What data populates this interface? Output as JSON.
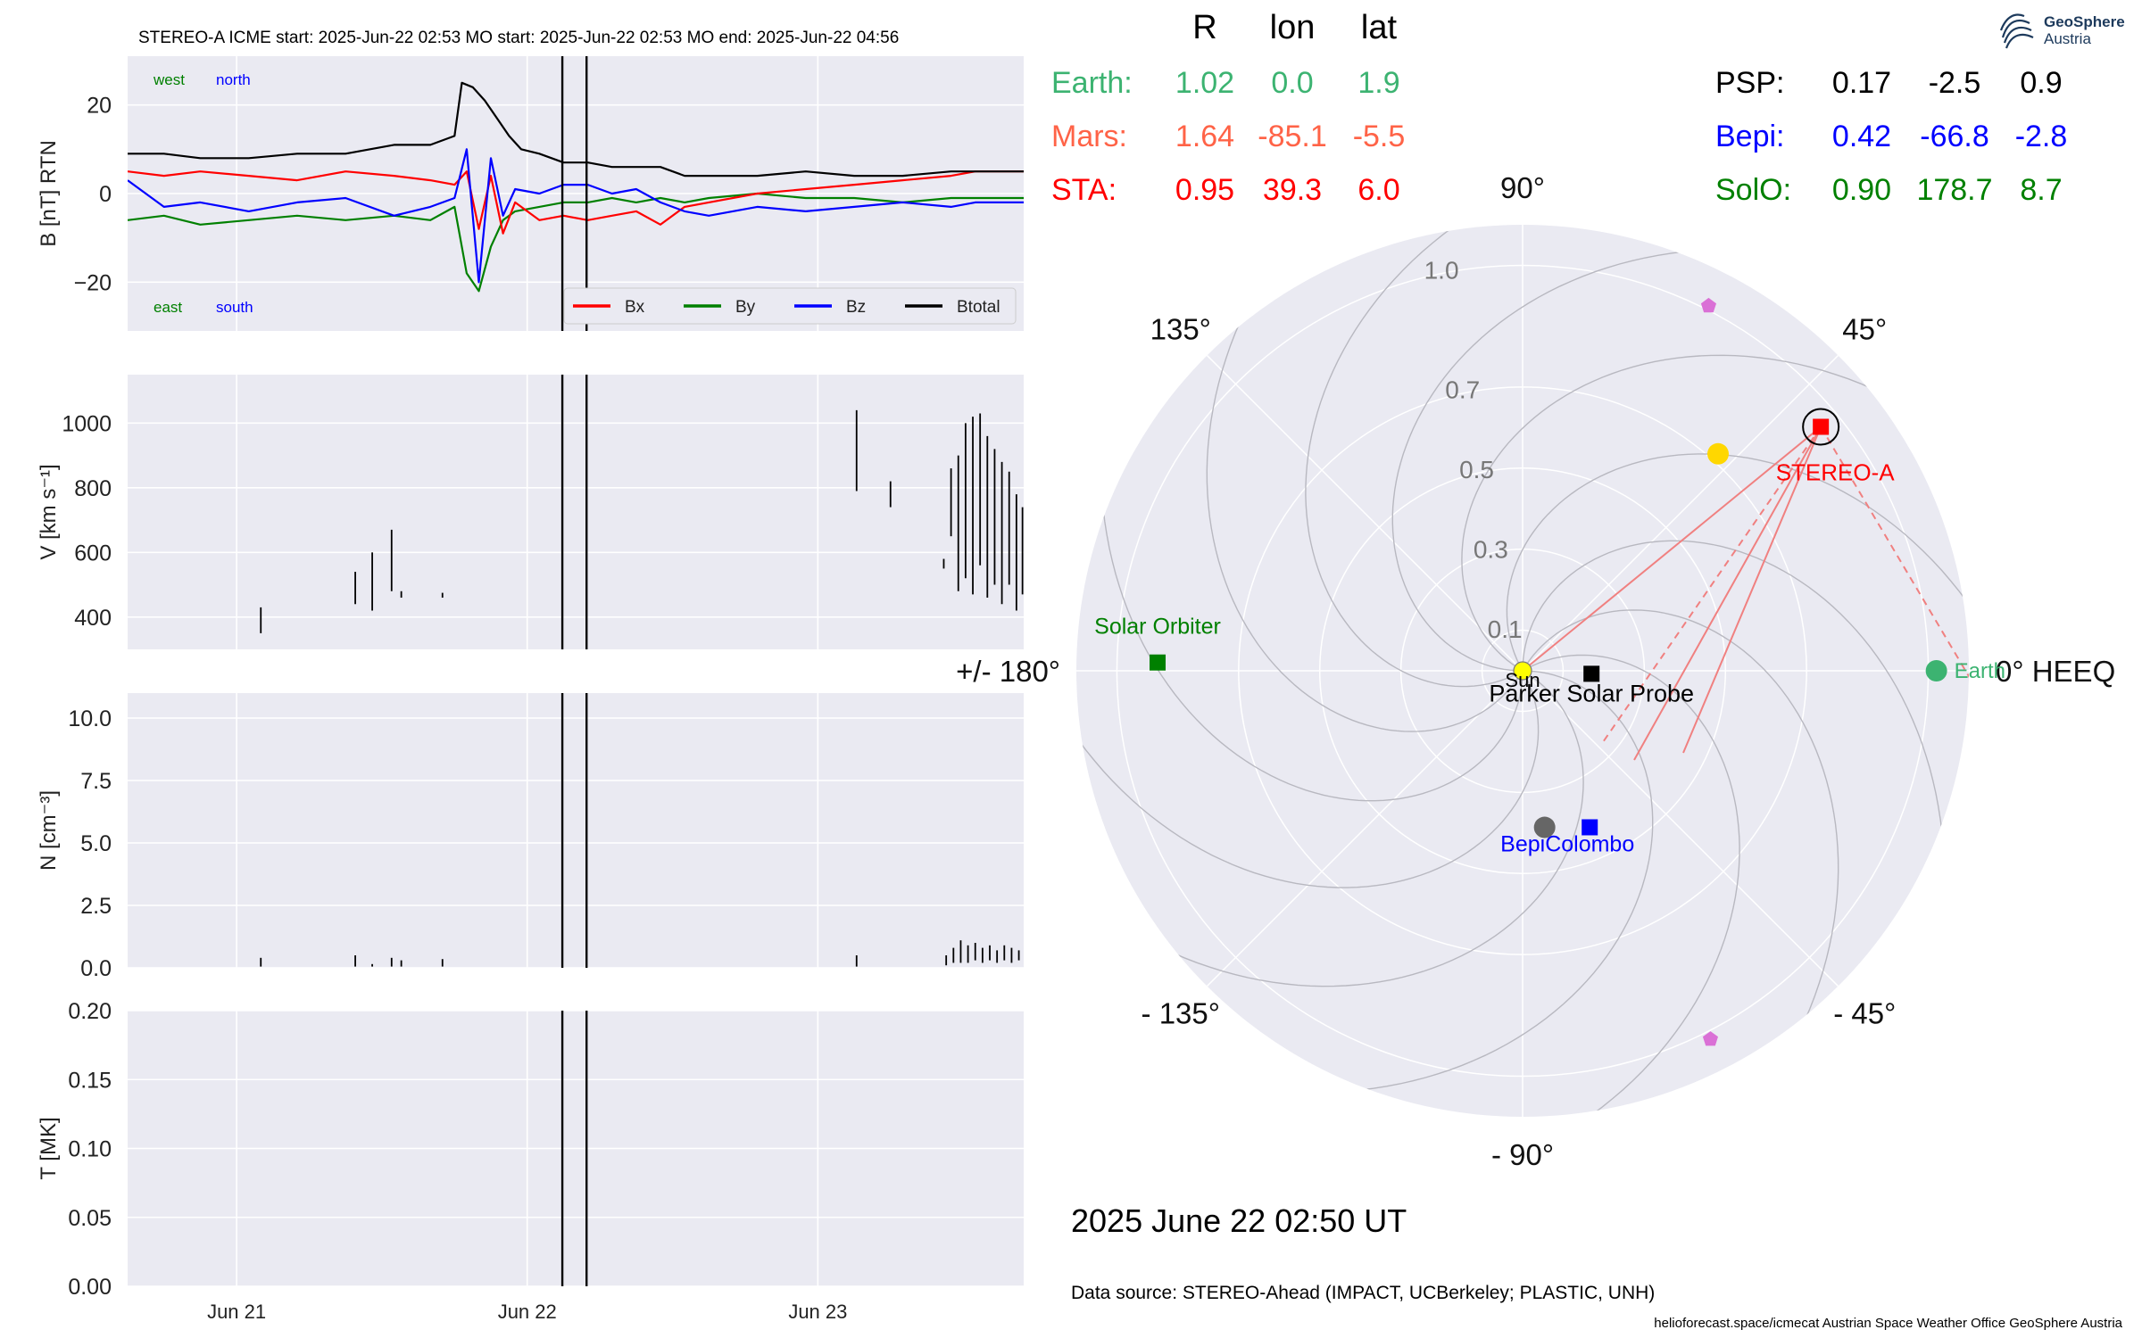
{
  "header": {
    "spacecraft": "STEREO-A",
    "icme_start": "ICME start: 2025-Jun-22 02:53",
    "mo_start": "MO start: 2025-Jun-22 02:53",
    "mo_end": "MO end: 2025-Jun-22 04:56"
  },
  "logo": {
    "line1": "GeoSphere",
    "line2": "Austria"
  },
  "colors": {
    "panel_bg": "#eaeaf2",
    "grid": "#ffffff",
    "bx": "#ff0000",
    "by": "#008000",
    "bz": "#0000ff",
    "btotal": "#000000",
    "earth": "#3cb371",
    "mars": "#ff6347",
    "sta": "#ff0000",
    "psp": "#000000",
    "bepi": "#0000ff",
    "solo": "#008000",
    "mercury": "#666666",
    "venus": "#ffd700",
    "sun": "#ffff00",
    "comet": "#da70d6"
  },
  "chart_data": [
    {
      "type": "line",
      "ylabel": "B [nT] RTN",
      "ylim": [
        -31,
        31
      ],
      "yticks": [
        "20",
        "0",
        "−20"
      ],
      "ytick_values": [
        20,
        0,
        -20
      ],
      "xlim_hours": [
        0,
        74
      ],
      "x_axis_start": "2025-06-20 15:00",
      "corner_labels": {
        "top_left": "west",
        "top_right": "north",
        "bottom_left": "east",
        "bottom_right": "south"
      },
      "legend": {
        "placement": "lower right",
        "entries": [
          "Bx",
          "By",
          "Bz",
          "Btotal"
        ]
      },
      "vertical_markers_hours": [
        35.9,
        37.9
      ],
      "series": [
        {
          "name": "Bx",
          "points": [
            [
              0,
              5
            ],
            [
              3,
              4
            ],
            [
              6,
              5
            ],
            [
              10,
              4
            ],
            [
              14,
              3
            ],
            [
              18,
              5
            ],
            [
              22,
              4
            ],
            [
              25,
              3
            ],
            [
              27,
              2
            ],
            [
              28,
              5
            ],
            [
              29,
              -8
            ],
            [
              30,
              4
            ],
            [
              31,
              -9
            ],
            [
              32,
              -2
            ],
            [
              34,
              -6
            ],
            [
              36,
              -5
            ],
            [
              38,
              -6
            ],
            [
              40,
              -5
            ],
            [
              42,
              -4
            ],
            [
              44,
              -7
            ],
            [
              46,
              -3
            ],
            [
              48,
              -2
            ],
            [
              52,
              0
            ],
            [
              56,
              1
            ],
            [
              60,
              2
            ],
            [
              64,
              3
            ],
            [
              68,
              4
            ],
            [
              70,
              5
            ],
            [
              74,
              5
            ]
          ]
        },
        {
          "name": "By",
          "points": [
            [
              0,
              -6
            ],
            [
              3,
              -5
            ],
            [
              6,
              -7
            ],
            [
              10,
              -6
            ],
            [
              14,
              -5
            ],
            [
              18,
              -6
            ],
            [
              22,
              -5
            ],
            [
              25,
              -6
            ],
            [
              27,
              -3
            ],
            [
              28,
              -18
            ],
            [
              29,
              -22
            ],
            [
              30,
              -12
            ],
            [
              31,
              -6
            ],
            [
              32,
              -4
            ],
            [
              34,
              -3
            ],
            [
              36,
              -2
            ],
            [
              38,
              -2
            ],
            [
              40,
              -1
            ],
            [
              42,
              -2
            ],
            [
              44,
              -1
            ],
            [
              46,
              -2
            ],
            [
              48,
              -1
            ],
            [
              52,
              0
            ],
            [
              56,
              -1
            ],
            [
              60,
              -1
            ],
            [
              64,
              -2
            ],
            [
              68,
              -1
            ],
            [
              70,
              -1
            ],
            [
              74,
              -1
            ]
          ]
        },
        {
          "name": "Bz",
          "points": [
            [
              0,
              3
            ],
            [
              3,
              -3
            ],
            [
              6,
              -2
            ],
            [
              10,
              -4
            ],
            [
              14,
              -2
            ],
            [
              18,
              -1
            ],
            [
              22,
              -5
            ],
            [
              25,
              -3
            ],
            [
              27,
              -1
            ],
            [
              28,
              10
            ],
            [
              29,
              -20
            ],
            [
              30,
              8
            ],
            [
              31,
              -5
            ],
            [
              32,
              1
            ],
            [
              34,
              0
            ],
            [
              36,
              2
            ],
            [
              38,
              2
            ],
            [
              40,
              0
            ],
            [
              42,
              1
            ],
            [
              44,
              -2
            ],
            [
              46,
              -4
            ],
            [
              48,
              -5
            ],
            [
              52,
              -3
            ],
            [
              56,
              -4
            ],
            [
              60,
              -3
            ],
            [
              64,
              -2
            ],
            [
              68,
              -3
            ],
            [
              70,
              -2
            ],
            [
              74,
              -2
            ]
          ]
        },
        {
          "name": "Btotal",
          "points": [
            [
              0,
              9
            ],
            [
              3,
              9
            ],
            [
              6,
              8
            ],
            [
              10,
              8
            ],
            [
              14,
              9
            ],
            [
              18,
              9
            ],
            [
              22,
              11
            ],
            [
              25,
              11
            ],
            [
              27,
              13
            ],
            [
              27.6,
              25
            ],
            [
              28.5,
              24
            ],
            [
              29.5,
              21
            ],
            [
              30.5,
              17
            ],
            [
              31.5,
              13
            ],
            [
              32.5,
              10
            ],
            [
              34,
              9
            ],
            [
              36,
              7
            ],
            [
              38,
              7
            ],
            [
              40,
              6
            ],
            [
              42,
              6
            ],
            [
              44,
              6
            ],
            [
              46,
              4
            ],
            [
              48,
              4
            ],
            [
              52,
              4
            ],
            [
              56,
              5
            ],
            [
              60,
              4
            ],
            [
              64,
              4
            ],
            [
              68,
              5
            ],
            [
              70,
              5
            ],
            [
              74,
              5
            ]
          ]
        }
      ]
    },
    {
      "type": "line",
      "ylabel": "V [km s⁻¹]",
      "ylim": [
        300,
        1150
      ],
      "yticks": [
        "1000",
        "800",
        "600",
        "400"
      ],
      "ytick_values": [
        1000,
        800,
        600,
        400
      ],
      "xlim_hours": [
        0,
        74
      ],
      "vertical_markers_hours": [
        35.9,
        37.9
      ],
      "segments": [
        [
          11.0,
          350,
          430
        ],
        [
          18.8,
          440,
          540
        ],
        [
          20.2,
          420,
          600
        ],
        [
          21.8,
          480,
          670
        ],
        [
          22.6,
          460,
          480
        ],
        [
          26.0,
          460,
          475
        ],
        [
          60.2,
          790,
          1040
        ],
        [
          63.0,
          740,
          820
        ],
        [
          67.4,
          550,
          580
        ],
        [
          68.0,
          650,
          860
        ],
        [
          68.6,
          480,
          900
        ],
        [
          69.2,
          520,
          1000
        ],
        [
          69.8,
          470,
          1020
        ],
        [
          70.4,
          560,
          1030
        ],
        [
          71.0,
          460,
          960
        ],
        [
          71.6,
          500,
          920
        ],
        [
          72.2,
          440,
          880
        ],
        [
          72.8,
          500,
          850
        ],
        [
          73.4,
          420,
          780
        ],
        [
          73.9,
          470,
          740
        ]
      ]
    },
    {
      "type": "line",
      "ylabel": "N [cm⁻³]",
      "ylim": [
        0,
        11
      ],
      "yticks": [
        "10.0",
        "7.5",
        "5.0",
        "2.5",
        "0.0"
      ],
      "ytick_values": [
        10,
        7.5,
        5,
        2.5,
        0
      ],
      "xlim_hours": [
        0,
        74
      ],
      "vertical_markers_hours": [
        35.9,
        37.9
      ],
      "segments": [
        [
          11.0,
          0.05,
          0.4
        ],
        [
          18.8,
          0.05,
          0.5
        ],
        [
          20.2,
          0.05,
          0.15
        ],
        [
          21.8,
          0.05,
          0.4
        ],
        [
          22.6,
          0.05,
          0.3
        ],
        [
          26.0,
          0.05,
          0.35
        ],
        [
          60.2,
          0.05,
          0.5
        ],
        [
          67.6,
          0.1,
          0.5
        ],
        [
          68.2,
          0.2,
          0.8
        ],
        [
          68.8,
          0.2,
          1.1
        ],
        [
          69.4,
          0.2,
          0.9
        ],
        [
          70.0,
          0.3,
          1.0
        ],
        [
          70.6,
          0.2,
          0.8
        ],
        [
          71.2,
          0.3,
          0.9
        ],
        [
          71.8,
          0.2,
          0.7
        ],
        [
          72.4,
          0.3,
          0.9
        ],
        [
          73.0,
          0.2,
          0.8
        ],
        [
          73.6,
          0.3,
          0.7
        ]
      ]
    },
    {
      "type": "line",
      "ylabel": "T [MK]",
      "ylim": [
        0,
        0.2
      ],
      "yticks": [
        "0.20",
        "0.15",
        "0.10",
        "0.05",
        "0.00"
      ],
      "ytick_values": [
        0.2,
        0.15,
        0.1,
        0.05,
        0
      ],
      "xlim_hours": [
        0,
        74
      ],
      "xticks": [
        "Jun 21",
        "Jun 22",
        "Jun 23"
      ],
      "xtick_hours": [
        9,
        33,
        57
      ],
      "vertical_markers_hours": [
        35.9,
        37.9
      ]
    },
    {
      "type": "scatter",
      "coordinate_system": "polar (HEEQ longitude, radius in AU)",
      "r_max_au": 1.1,
      "radial_ticks": [
        {
          "label": "0.1",
          "r": 0.1
        },
        {
          "label": "0.3",
          "r": 0.3
        },
        {
          "label": "0.5",
          "r": 0.5
        },
        {
          "label": "0.7",
          "r": 0.7
        },
        {
          "label": "1.0",
          "r": 1.0
        }
      ],
      "angle_labels": [
        {
          "label": "0° HEEQ",
          "deg": 0
        },
        {
          "label": "45°",
          "deg": 45
        },
        {
          "label": "90°",
          "deg": 90
        },
        {
          "label": "135°",
          "deg": 135
        },
        {
          "label": "+/- 180°",
          "deg": 180
        },
        {
          "label": "- 135°",
          "deg": 225
        },
        {
          "label": "- 90°",
          "deg": 270
        },
        {
          "label": "- 45°",
          "deg": 315
        }
      ],
      "bodies": [
        {
          "name": "Sun",
          "lon": 0,
          "r": 0,
          "marker": "circle",
          "color": "#ffff00",
          "label": "Sun"
        },
        {
          "name": "Earth",
          "lon": 0.0,
          "r": 1.02,
          "marker": "circle",
          "color": "#3cb371",
          "label": "Earth"
        },
        {
          "name": "STEREO-A",
          "lon": 39.3,
          "r": 0.95,
          "marker": "square",
          "color": "#ff0000",
          "label": "STEREO-A"
        },
        {
          "name": "Parker Solar Probe",
          "lon": -2.5,
          "r": 0.17,
          "marker": "square",
          "color": "#000000",
          "label": "Parker Solar Probe"
        },
        {
          "name": "BepiColombo",
          "lon": -66.8,
          "r": 0.42,
          "marker": "square",
          "color": "#0000ff",
          "label": "BepiColombo"
        },
        {
          "name": "Solar Orbiter",
          "lon": 178.7,
          "r": 0.9,
          "marker": "square",
          "color": "#008000",
          "label": "Solar Orbiter"
        },
        {
          "name": "Mercury",
          "lon": -82,
          "r": 0.39,
          "marker": "circle",
          "color": "#666666",
          "label": ""
        },
        {
          "name": "Venus",
          "lon": 48,
          "r": 0.72,
          "marker": "circle",
          "color": "#ffd700",
          "label": ""
        },
        {
          "name": "comet-1",
          "lon": 63,
          "r": 1.01,
          "marker": "pentagon",
          "color": "#da70d6",
          "label": ""
        },
        {
          "name": "comet-2",
          "lon": -63,
          "r": 1.02,
          "marker": "pentagon",
          "color": "#da70d6",
          "label": ""
        }
      ],
      "position_table": {
        "columns": [
          "R",
          "lon",
          "lat"
        ],
        "rows_left": [
          {
            "name": "Earth:",
            "values": [
              "1.02",
              "0.0",
              "1.9"
            ],
            "color": "#3cb371"
          },
          {
            "name": "Mars:",
            "values": [
              "1.64",
              "-85.1",
              "-5.5"
            ],
            "color": "#ff6347"
          },
          {
            "name": "STA:",
            "values": [
              "0.95",
              "39.3",
              "6.0"
            ],
            "color": "#ff0000"
          }
        ],
        "rows_right": [
          {
            "name": "PSP:",
            "values": [
              "0.17",
              "-2.5",
              "0.9"
            ],
            "color": "#000000"
          },
          {
            "name": "Bepi:",
            "values": [
              "0.42",
              "-66.8",
              "-2.8"
            ],
            "color": "#0000ff"
          },
          {
            "name": "SolO:",
            "values": [
              "0.90",
              "178.7",
              "8.7"
            ],
            "color": "#008000"
          }
        ]
      },
      "date": "2025 June 22  02:50 UT"
    }
  ],
  "footer": {
    "data_source": "Data source: STEREO-Ahead (IMPACT, UCBerkeley; PLASTIC, UNH)",
    "credits": "helioforecast.space/icmecat   Austrian Space Weather Office   GeoSphere Austria"
  }
}
